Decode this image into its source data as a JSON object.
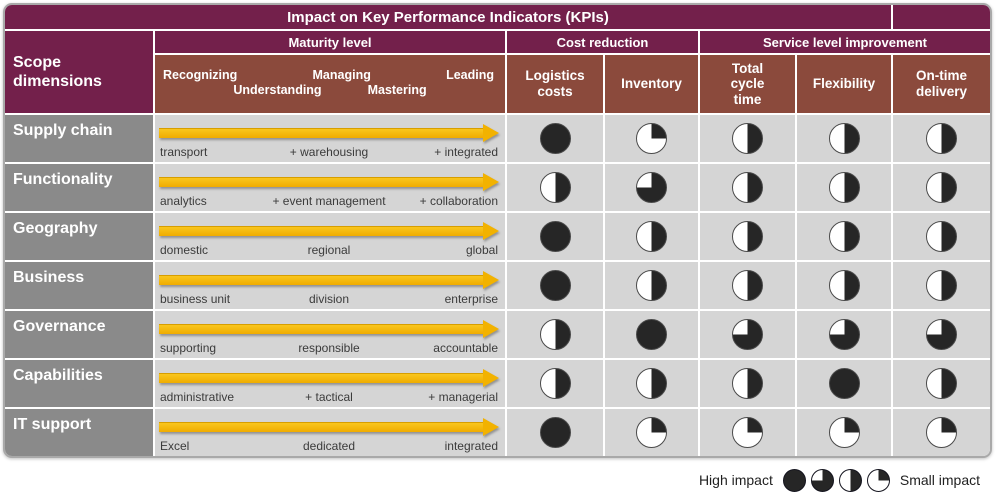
{
  "title": "Impact on Key Performance Indicators (KPIs)",
  "header": {
    "scope": "Scope dimensions",
    "maturity": "Maturity level",
    "cost": "Cost reduction",
    "service": "Service level improvement",
    "maturity_levels": [
      "Recognizing",
      "Understanding",
      "Managing",
      "Mastering",
      "Leading"
    ],
    "kpi_columns": [
      "Logistics costs",
      "Inventory",
      "Total cycle time",
      "Flexibility",
      "On-time delivery"
    ]
  },
  "rows": [
    {
      "label": "Supply chain",
      "stages": [
        "transport",
        "+ warehousing",
        "+ integrated"
      ],
      "impacts": [
        100,
        25,
        50,
        50,
        50
      ]
    },
    {
      "label": "Functionality",
      "stages": [
        "analytics",
        "+ event management",
        "+ collaboration"
      ],
      "impacts": [
        50,
        75,
        50,
        50,
        50
      ]
    },
    {
      "label": "Geography",
      "stages": [
        "domestic",
        "regional",
        "global"
      ],
      "impacts": [
        100,
        50,
        50,
        50,
        50
      ]
    },
    {
      "label": "Business",
      "stages": [
        "business unit",
        "division",
        "enterprise"
      ],
      "impacts": [
        100,
        50,
        50,
        50,
        50
      ]
    },
    {
      "label": "Governance",
      "stages": [
        "supporting",
        "responsible",
        "accountable"
      ],
      "impacts": [
        50,
        100,
        75,
        75,
        75
      ]
    },
    {
      "label": "Capabilities",
      "stages": [
        "administrative",
        "+ tactical",
        "+ managerial"
      ],
      "impacts": [
        50,
        50,
        50,
        100,
        50
      ]
    },
    {
      "label": "IT support",
      "stages": [
        "Excel",
        "dedicated",
        "integrated"
      ],
      "impacts": [
        100,
        25,
        25,
        25,
        25
      ]
    }
  ],
  "legend": {
    "high_label": "High impact",
    "small_label": "Small impact",
    "scale": [
      100,
      75,
      50,
      25
    ]
  },
  "colors": {
    "maroon": "#73204B",
    "brown": "#8B4A3C",
    "row_label_gray": "#8A8A8A",
    "cell_gray": "#D5D5D5",
    "ball": "#262626",
    "arrow_yellow": "#F2B200",
    "outer_border": "#A9A9A9"
  }
}
